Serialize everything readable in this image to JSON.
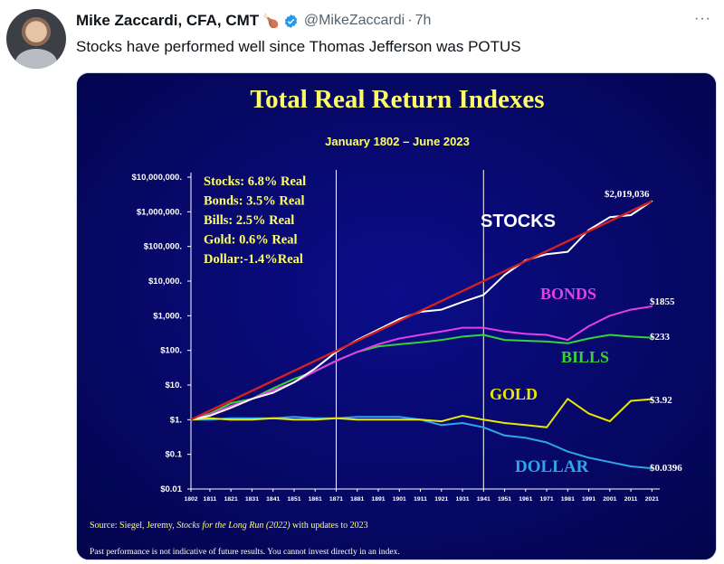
{
  "tweet": {
    "author_name": "Mike Zaccardi, CFA, CMT",
    "emoji": "🍗",
    "handle": "@MikeZaccardi",
    "separator": "·",
    "time": "7h",
    "more": "···",
    "text": "Stocks have performed well since Thomas Jefferson was POTUS"
  },
  "colors": {
    "accent": "#1d9bf0",
    "chart_bg": "#05065f",
    "title": "#ffff66"
  },
  "icons": {
    "verified": "verified-badge-icon",
    "more": "more-options-icon",
    "emoji": "poultry-leg-icon"
  },
  "chart_data": {
    "type": "line",
    "title": "Total Real Return Indexes",
    "subtitle": "January 1802 – June 2023",
    "y_scale": "log",
    "ylim": [
      0.01,
      10000000
    ],
    "xlim": [
      1802,
      2023
    ],
    "y_tick_values": [
      0.01,
      0.1,
      1,
      10,
      100,
      1000,
      10000,
      100000,
      1000000,
      10000000
    ],
    "y_tick_labels": [
      "$0.01",
      "$0.1",
      "$1.",
      "$10.",
      "$100.",
      "$1,000.",
      "$10,000.",
      "$100,000.",
      "$1,000,000.",
      "$10,000,000."
    ],
    "x_tick_labels": [
      "1802",
      "1811",
      "1821",
      "1831",
      "1841",
      "1851",
      "1861",
      "1871",
      "1881",
      "1891",
      "1901",
      "1911",
      "1921",
      "1931",
      "1941",
      "1951",
      "1961",
      "1971",
      "1981",
      "1991",
      "2001",
      "2011",
      "2021"
    ],
    "vertical_markers": [
      1871,
      1941
    ],
    "annotations": {
      "stats": [
        "Stocks: 6.8% Real",
        "Bonds: 3.5% Real",
        "Bills:   2.5% Real",
        "Gold:  0.6% Real",
        "Dollar:-1.4%Real"
      ],
      "source_prefix": "Source: Siegel, Jeremy, ",
      "source_book": "Stocks for the Long Run (2022)",
      "source_suffix": " with updates to 2023",
      "disclaimer": "Past performance is not indicative of future results. You cannot invest directly in an index."
    },
    "series": [
      {
        "name": "STOCKS",
        "end_label": "$2,019,036",
        "color": "#ffffff",
        "x": [
          1802,
          1811,
          1821,
          1831,
          1841,
          1851,
          1861,
          1871,
          1881,
          1891,
          1901,
          1911,
          1921,
          1931,
          1941,
          1951,
          1961,
          1971,
          1981,
          1991,
          2001,
          2011,
          2021
        ],
        "values": [
          1,
          1.3,
          2.2,
          4,
          6,
          12,
          30,
          90,
          200,
          400,
          800,
          1300,
          1500,
          2500,
          4000,
          15000,
          40000,
          60000,
          70000,
          300000,
          700000,
          800000,
          2019036
        ]
      },
      {
        "name": "BONDS",
        "end_label": "$1855",
        "color": "#e53ee5",
        "x": [
          1802,
          1811,
          1821,
          1831,
          1841,
          1851,
          1861,
          1871,
          1881,
          1891,
          1901,
          1911,
          1921,
          1931,
          1941,
          1951,
          1961,
          1971,
          1981,
          1991,
          2001,
          2011,
          2021
        ],
        "values": [
          1,
          1.4,
          2.5,
          4,
          7,
          12,
          25,
          50,
          90,
          150,
          220,
          280,
          350,
          450,
          450,
          350,
          300,
          280,
          200,
          500,
          1000,
          1500,
          1855
        ]
      },
      {
        "name": "BILLS",
        "end_label": "$233",
        "color": "#33d433",
        "x": [
          1802,
          1811,
          1821,
          1831,
          1841,
          1851,
          1861,
          1871,
          1881,
          1891,
          1901,
          1911,
          1921,
          1931,
          1941,
          1951,
          1961,
          1971,
          1981,
          1991,
          2001,
          2011,
          2021
        ],
        "values": [
          1,
          1.5,
          3,
          4,
          8,
          15,
          25,
          50,
          90,
          130,
          150,
          170,
          200,
          250,
          280,
          200,
          190,
          180,
          160,
          220,
          280,
          250,
          233
        ]
      },
      {
        "name": "GOLD",
        "end_label": "$3.92",
        "color": "#e8e800",
        "x": [
          1802,
          1811,
          1821,
          1831,
          1841,
          1851,
          1861,
          1871,
          1881,
          1891,
          1901,
          1911,
          1921,
          1931,
          1941,
          1951,
          1961,
          1971,
          1981,
          1991,
          2001,
          2011,
          2021
        ],
        "values": [
          1,
          1.1,
          1,
          1,
          1.1,
          1,
          1,
          1.1,
          1,
          1,
          1,
          1,
          0.9,
          1.3,
          1,
          0.8,
          0.7,
          0.6,
          4,
          1.5,
          0.9,
          3.5,
          3.92
        ]
      },
      {
        "name": "DOLLAR",
        "end_label": "$0.0396",
        "color": "#2fa6e8",
        "x": [
          1802,
          1811,
          1821,
          1831,
          1841,
          1851,
          1861,
          1871,
          1881,
          1891,
          1901,
          1911,
          1921,
          1931,
          1941,
          1951,
          1961,
          1971,
          1981,
          1991,
          2001,
          2011,
          2021
        ],
        "values": [
          1,
          1,
          1.1,
          1.1,
          1.1,
          1.2,
          1.1,
          1.1,
          1.2,
          1.2,
          1.2,
          1,
          0.7,
          0.8,
          0.6,
          0.35,
          0.3,
          0.22,
          0.12,
          0.08,
          0.06,
          0.045,
          0.0396
        ]
      }
    ]
  }
}
